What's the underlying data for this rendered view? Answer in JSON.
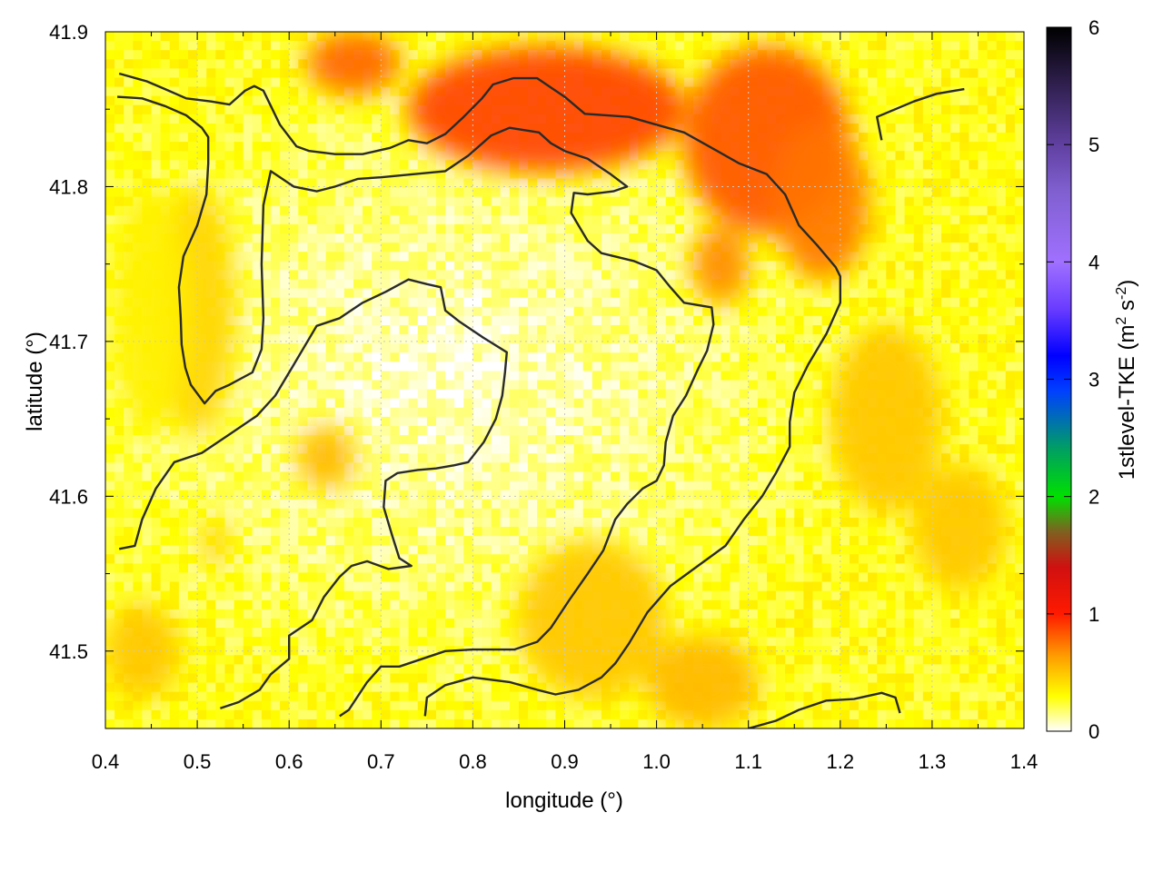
{
  "chart_data": {
    "type": "heatmap",
    "title": "",
    "xlabel": "longitude (°)",
    "ylabel": "latitude (°)",
    "xlim": [
      0.4,
      1.4
    ],
    "ylim": [
      41.45,
      41.9
    ],
    "xticks": [
      "0.4",
      "0.5",
      "0.6",
      "0.7",
      "0.8",
      "0.9",
      "1.0",
      "1.1",
      "1.2",
      "1.3",
      "1.4"
    ],
    "yticks": [
      "41.5",
      "41.6",
      "41.7",
      "41.8",
      "41.9"
    ],
    "grid": true,
    "colorbar": {
      "label": "1stlevel-TKE (m² s⁻²)",
      "label_main": "1stlevel-TKE (m",
      "label_sup1": "2",
      "label_mid": " s",
      "label_sup2": "-2",
      "label_end": ")",
      "range": [
        0,
        6
      ],
      "ticks": [
        "0",
        "1",
        "2",
        "3",
        "4",
        "5",
        "6"
      ],
      "stops": [
        {
          "v": 0.0,
          "color": "#ffffff"
        },
        {
          "v": 0.3,
          "color": "#ffff00"
        },
        {
          "v": 0.65,
          "color": "#ff9a00"
        },
        {
          "v": 1.0,
          "color": "#ff1a00"
        },
        {
          "v": 1.4,
          "color": "#d01010"
        },
        {
          "v": 1.7,
          "color": "#806020"
        },
        {
          "v": 2.0,
          "color": "#00e000"
        },
        {
          "v": 2.4,
          "color": "#00a060"
        },
        {
          "v": 2.9,
          "color": "#0040ff"
        },
        {
          "v": 3.2,
          "color": "#0000ff"
        },
        {
          "v": 3.6,
          "color": "#6a3cff"
        },
        {
          "v": 4.0,
          "color": "#a070ff"
        },
        {
          "v": 4.6,
          "color": "#8060d0"
        },
        {
          "v": 5.0,
          "color": "#6040a0"
        },
        {
          "v": 5.5,
          "color": "#302050"
        },
        {
          "v": 6.0,
          "color": "#000000"
        }
      ]
    },
    "hotspots": [
      {
        "lon": 0.88,
        "lat": 41.85,
        "rlon": 0.15,
        "rlat": 0.04,
        "value": 0.9
      },
      {
        "lon": 1.12,
        "lat": 41.83,
        "rlon": 0.09,
        "rlat": 0.06,
        "value": 0.85
      },
      {
        "lon": 1.18,
        "lat": 41.79,
        "rlon": 0.05,
        "rlat": 0.05,
        "value": 0.75
      },
      {
        "lon": 0.67,
        "lat": 41.88,
        "rlon": 0.05,
        "rlat": 0.02,
        "value": 0.8
      },
      {
        "lon": 1.07,
        "lat": 41.75,
        "rlon": 0.03,
        "rlat": 0.025,
        "value": 0.7
      },
      {
        "lon": 0.64,
        "lat": 41.625,
        "rlon": 0.03,
        "rlat": 0.02,
        "value": 0.55
      },
      {
        "lon": 0.5,
        "lat": 41.72,
        "rlon": 0.04,
        "rlat": 0.08,
        "value": 0.45
      },
      {
        "lon": 1.25,
        "lat": 41.65,
        "rlon": 0.06,
        "rlat": 0.06,
        "value": 0.5
      },
      {
        "lon": 1.33,
        "lat": 41.58,
        "rlon": 0.05,
        "rlat": 0.04,
        "value": 0.5
      },
      {
        "lon": 0.93,
        "lat": 41.52,
        "rlon": 0.08,
        "rlat": 0.05,
        "value": 0.5
      },
      {
        "lon": 1.05,
        "lat": 41.48,
        "rlon": 0.06,
        "rlat": 0.03,
        "value": 0.55
      },
      {
        "lon": 0.44,
        "lat": 41.5,
        "rlon": 0.04,
        "rlat": 0.03,
        "value": 0.5
      },
      {
        "lon": 0.45,
        "lat": 41.72,
        "rlon": 0.04,
        "rlat": 0.08,
        "value": 0.35
      },
      {
        "lon": 0.52,
        "lat": 41.57,
        "rlon": 0.015,
        "rlat": 0.015,
        "value": 0.45
      }
    ],
    "contours": [
      [
        [
          0.415,
          41.873
        ],
        [
          0.445,
          41.868
        ],
        [
          0.465,
          41.863
        ],
        [
          0.488,
          41.857
        ],
        [
          0.515,
          41.855
        ],
        [
          0.535,
          41.853
        ],
        [
          0.552,
          41.862
        ],
        [
          0.562,
          41.865
        ],
        [
          0.572,
          41.862
        ],
        [
          0.59,
          41.84
        ],
        [
          0.608,
          41.826
        ],
        [
          0.622,
          41.823
        ],
        [
          0.65,
          41.821
        ],
        [
          0.68,
          41.821
        ],
        [
          0.71,
          41.825
        ],
        [
          0.73,
          41.83
        ],
        [
          0.75,
          41.828
        ],
        [
          0.77,
          41.834
        ],
        [
          0.79,
          41.845
        ],
        [
          0.81,
          41.857
        ],
        [
          0.822,
          41.866
        ],
        [
          0.844,
          41.87
        ],
        [
          0.87,
          41.87
        ],
        [
          0.9,
          41.858
        ],
        [
          0.922,
          41.847
        ],
        [
          0.97,
          41.845
        ],
        [
          1.0,
          41.84
        ],
        [
          1.03,
          41.835
        ],
        [
          1.06,
          41.825
        ],
        [
          1.09,
          41.815
        ],
        [
          1.12,
          41.808
        ],
        [
          1.14,
          41.795
        ],
        [
          1.155,
          41.775
        ],
        [
          1.175,
          41.762
        ],
        [
          1.195,
          41.748
        ],
        [
          1.2,
          41.742
        ],
        [
          1.2,
          41.725
        ],
        [
          1.185,
          41.705
        ],
        [
          1.165,
          41.685
        ],
        [
          1.15,
          41.667
        ],
        [
          1.145,
          41.648
        ],
        [
          1.145,
          41.632
        ],
        [
          1.13,
          41.615
        ],
        [
          1.115,
          41.6
        ],
        [
          1.095,
          41.585
        ],
        [
          1.075,
          41.568
        ],
        [
          1.045,
          41.555
        ],
        [
          1.015,
          41.542
        ],
        [
          0.99,
          41.525
        ],
        [
          0.97,
          41.505
        ],
        [
          0.955,
          41.492
        ],
        [
          0.94,
          41.483
        ],
        [
          0.915,
          41.475
        ],
        [
          0.89,
          41.472
        ],
        [
          0.87,
          41.475
        ],
        [
          0.84,
          41.48
        ],
        [
          0.8,
          41.483
        ],
        [
          0.77,
          41.478
        ],
        [
          0.75,
          41.47
        ],
        [
          0.748,
          41.458
        ]
      ],
      [
        [
          0.413,
          41.858
        ],
        [
          0.44,
          41.857
        ],
        [
          0.465,
          41.852
        ],
        [
          0.488,
          41.846
        ],
        [
          0.505,
          41.838
        ],
        [
          0.512,
          41.832
        ],
        [
          0.512,
          41.815
        ],
        [
          0.51,
          41.795
        ],
        [
          0.5,
          41.775
        ],
        [
          0.485,
          41.755
        ],
        [
          0.48,
          41.735
        ],
        [
          0.482,
          41.715
        ],
        [
          0.483,
          41.698
        ],
        [
          0.487,
          41.683
        ],
        [
          0.493,
          41.672
        ],
        [
          0.508,
          41.66
        ],
        [
          0.52,
          41.668
        ],
        [
          0.535,
          41.672
        ],
        [
          0.56,
          41.68
        ],
        [
          0.57,
          41.695
        ],
        [
          0.572,
          41.715
        ],
        [
          0.57,
          41.75
        ],
        [
          0.572,
          41.788
        ],
        [
          0.58,
          41.81
        ],
        [
          0.605,
          41.8
        ],
        [
          0.63,
          41.797
        ],
        [
          0.65,
          41.8
        ],
        [
          0.675,
          41.805
        ],
        [
          0.7,
          41.806
        ],
        [
          0.735,
          41.808
        ],
        [
          0.77,
          41.81
        ],
        [
          0.795,
          41.82
        ],
        [
          0.82,
          41.833
        ],
        [
          0.84,
          41.838
        ],
        [
          0.872,
          41.835
        ],
        [
          0.885,
          41.828
        ],
        [
          0.9,
          41.823
        ],
        [
          0.925,
          41.818
        ],
        [
          0.95,
          41.808
        ],
        [
          0.968,
          41.8
        ],
        [
          0.953,
          41.797
        ],
        [
          0.925,
          41.795
        ],
        [
          0.91,
          41.796
        ],
        [
          0.907,
          41.783
        ],
        [
          0.915,
          41.775
        ],
        [
          0.925,
          41.765
        ],
        [
          0.94,
          41.757
        ],
        [
          0.975,
          41.752
        ],
        [
          1.0,
          41.746
        ],
        [
          1.015,
          41.735
        ],
        [
          1.03,
          41.725
        ],
        [
          1.06,
          41.722
        ],
        [
          1.062,
          41.711
        ],
        [
          1.055,
          41.694
        ],
        [
          1.045,
          41.682
        ],
        [
          1.032,
          41.665
        ],
        [
          1.018,
          41.652
        ],
        [
          1.01,
          41.635
        ],
        [
          1.008,
          41.62
        ],
        [
          1.0,
          41.61
        ],
        [
          0.985,
          41.605
        ],
        [
          0.968,
          41.595
        ],
        [
          0.955,
          41.585
        ],
        [
          0.942,
          41.565
        ],
        [
          0.925,
          41.55
        ],
        [
          0.905,
          41.533
        ],
        [
          0.885,
          41.515
        ],
        [
          0.87,
          41.506
        ],
        [
          0.845,
          41.501
        ],
        [
          0.82,
          41.501
        ],
        [
          0.8,
          41.501
        ],
        [
          0.77,
          41.5
        ],
        [
          0.745,
          41.495
        ],
        [
          0.72,
          41.49
        ],
        [
          0.7,
          41.49
        ],
        [
          0.685,
          41.48
        ],
        [
          0.665,
          41.462
        ],
        [
          0.655,
          41.458
        ]
      ],
      [
        [
          0.415,
          41.566
        ],
        [
          0.432,
          41.568
        ],
        [
          0.44,
          41.585
        ],
        [
          0.455,
          41.605
        ],
        [
          0.475,
          41.622
        ],
        [
          0.505,
          41.628
        ],
        [
          0.535,
          41.64
        ],
        [
          0.565,
          41.652
        ],
        [
          0.585,
          41.665
        ],
        [
          0.605,
          41.685
        ],
        [
          0.63,
          41.71
        ],
        [
          0.655,
          41.715
        ],
        [
          0.68,
          41.725
        ],
        [
          0.705,
          41.732
        ],
        [
          0.73,
          41.74
        ],
        [
          0.75,
          41.737
        ],
        [
          0.765,
          41.735
        ],
        [
          0.77,
          41.72
        ],
        [
          0.785,
          41.713
        ],
        [
          0.81,
          41.703
        ],
        [
          0.837,
          41.693
        ],
        [
          0.835,
          41.68
        ],
        [
          0.832,
          41.665
        ],
        [
          0.825,
          41.65
        ],
        [
          0.812,
          41.635
        ],
        [
          0.795,
          41.622
        ],
        [
          0.78,
          41.62
        ],
        [
          0.76,
          41.618
        ],
        [
          0.74,
          41.617
        ],
        [
          0.718,
          41.615
        ],
        [
          0.705,
          41.61
        ],
        [
          0.703,
          41.593
        ],
        [
          0.712,
          41.575
        ],
        [
          0.72,
          41.56
        ],
        [
          0.733,
          41.555
        ],
        [
          0.708,
          41.553
        ],
        [
          0.685,
          41.558
        ],
        [
          0.668,
          41.555
        ],
        [
          0.655,
          41.548
        ],
        [
          0.638,
          41.535
        ],
        [
          0.625,
          41.52
        ],
        [
          0.6,
          41.51
        ],
        [
          0.6,
          41.495
        ],
        [
          0.58,
          41.485
        ],
        [
          0.568,
          41.475
        ],
        [
          0.545,
          41.467
        ],
        [
          0.525,
          41.463
        ]
      ],
      [
        [
          1.245,
          41.83
        ],
        [
          1.24,
          41.845
        ],
        [
          1.26,
          41.85
        ],
        [
          1.28,
          41.855
        ],
        [
          1.305,
          41.86
        ],
        [
          1.335,
          41.863
        ]
      ],
      [
        [
          1.1,
          41.45
        ],
        [
          1.13,
          41.455
        ],
        [
          1.155,
          41.462
        ],
        [
          1.185,
          41.468
        ],
        [
          1.215,
          41.469
        ],
        [
          1.245,
          41.473
        ],
        [
          1.26,
          41.47
        ],
        [
          1.265,
          41.46
        ]
      ]
    ]
  }
}
